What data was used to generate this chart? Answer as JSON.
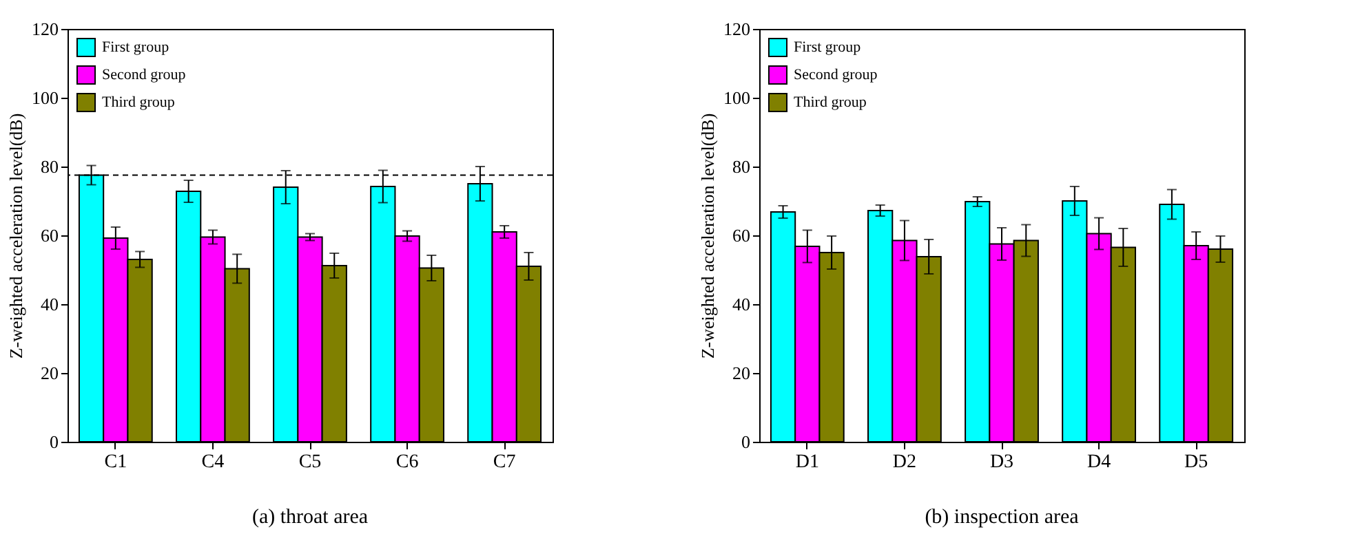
{
  "chart_data": [
    {
      "type": "bar",
      "title": "(a) throat area",
      "ylabel": "Z-weighted acceleration level(dB)",
      "categories": [
        "C1",
        "C4",
        "C5",
        "C6",
        "C7"
      ],
      "series": [
        {
          "name": "First group",
          "color": "#00ffff",
          "values": [
            77.5,
            72.8,
            74,
            74.2,
            75
          ],
          "errors": [
            2.8,
            3.2,
            4.8,
            4.7,
            5
          ]
        },
        {
          "name": "Second group",
          "color": "#ff00ff",
          "values": [
            59.2,
            59.5,
            59.5,
            59.8,
            61
          ],
          "errors": [
            3.2,
            2,
            1,
            1.5,
            1.8
          ]
        },
        {
          "name": "Third group",
          "color": "#808000",
          "values": [
            53,
            50.3,
            51.2,
            50.5,
            51
          ],
          "errors": [
            2.3,
            4.2,
            3.6,
            3.7,
            4
          ]
        }
      ],
      "ylim": [
        0,
        120
      ],
      "yticks": [
        0,
        20,
        40,
        60,
        80,
        100,
        120
      ],
      "grid": false,
      "legend": "top left",
      "ref_lines": [
        {
          "axis": "y",
          "value": 77.5,
          "label": null,
          "line_style": "dashed",
          "color": "#000000"
        }
      ]
    },
    {
      "type": "bar",
      "title": "(b) inspection area",
      "ylabel": "Z-weighted acceleration level(dB)",
      "categories": [
        "D1",
        "D2",
        "D3",
        "D4",
        "D5"
      ],
      "series": [
        {
          "name": "First group",
          "color": "#00ffff",
          "values": [
            66.8,
            67.2,
            69.8,
            70,
            69
          ],
          "errors": [
            1.8,
            1.6,
            1.4,
            4.2,
            4.3
          ]
        },
        {
          "name": "Second group",
          "color": "#ff00ff",
          "values": [
            56.8,
            58.5,
            57.5,
            60.5,
            57
          ],
          "errors": [
            4.7,
            5.8,
            4.7,
            4.6,
            4
          ]
        },
        {
          "name": "Third group",
          "color": "#808000",
          "values": [
            55,
            53.8,
            58.5,
            56.5,
            56
          ],
          "errors": [
            4.8,
            5,
            4.6,
            5.5,
            3.8
          ]
        }
      ],
      "ylim": [
        0,
        120
      ],
      "yticks": [
        0,
        20,
        40,
        60,
        80,
        100,
        120
      ],
      "grid": false,
      "legend": "top left"
    }
  ]
}
